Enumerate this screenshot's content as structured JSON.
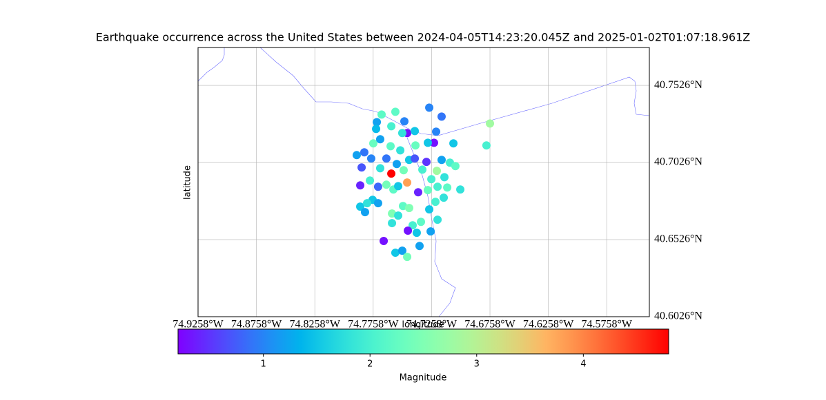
{
  "chart_data": {
    "type": "scatter",
    "title": "Earthquake occurrence across the United States between 2024-04-05T14:23:20.045Z and 2025-01-02T01:07:18.961Z",
    "xlabel": "longitude",
    "ylabel": "latitude",
    "colorbar_label": "Magnitude",
    "colormap": "rainbow",
    "grid": true,
    "xlim": [
      -74.9258,
      -74.5393
    ],
    "ylim": [
      40.6026,
      40.7772
    ],
    "xticks": [
      {
        "value": -74.9258,
        "label": "74.9258°W"
      },
      {
        "value": -74.8758,
        "label": "74.8758°W"
      },
      {
        "value": -74.8258,
        "label": "74.8258°W"
      },
      {
        "value": -74.7758,
        "label": "74.7758°W"
      },
      {
        "value": -74.7258,
        "label": "74.7258°W"
      },
      {
        "value": -74.6758,
        "label": "74.6758°W"
      },
      {
        "value": -74.6258,
        "label": "74.6258°W"
      },
      {
        "value": -74.5758,
        "label": "74.5758°W"
      }
    ],
    "yticks": [
      {
        "value": 40.6026,
        "label": "40.6026°N"
      },
      {
        "value": 40.6526,
        "label": "40.6526°N"
      },
      {
        "value": 40.7026,
        "label": "40.7026°N"
      },
      {
        "value": 40.7526,
        "label": "40.7526°N"
      }
    ],
    "clim": [
      0.2,
      4.8
    ],
    "cticks": [
      1,
      2,
      3,
      4
    ],
    "x": [
      -74.7278,
      -74.7172,
      -74.7686,
      -74.7568,
      -74.7727,
      -74.7491,
      -74.7467,
      -74.7219,
      -74.7402,
      -74.6758,
      -74.6788,
      -74.7071,
      -74.7237,
      -74.729,
      -74.7396,
      -74.7899,
      -74.7834,
      -74.7757,
      -74.7698,
      -74.7645,
      -74.7556,
      -74.7603,
      -74.7467,
      -74.7857,
      -74.7869,
      -74.7786,
      -74.7698,
      -74.7763,
      -74.7716,
      -74.7869,
      -74.781,
      -74.7828,
      -74.7373,
      -74.729,
      -74.7207,
      -74.7124,
      -74.7012,
      -74.7154,
      -74.7225,
      -74.7278,
      -74.7597,
      -74.7503,
      -74.745,
      -74.7544,
      -74.7597,
      -74.742,
      -74.7349,
      -74.7461,
      -74.7385,
      -74.7266,
      -74.7207,
      -74.7668,
      -74.7361,
      -74.7568,
      -74.7509,
      -74.7467,
      -74.7213,
      -74.7302,
      -74.7172,
      -74.7101,
      -74.7054,
      -74.7148,
      -74.726,
      -74.7337,
      -74.7497,
      -74.7645,
      -74.7585,
      -74.7716,
      -74.7775,
      -74.7526,
      -74.745,
      -74.7609,
      -74.7509,
      -74.7603,
      -74.7402,
      -74.7733,
      -74.7544
    ],
    "y": [
      40.7382,
      40.7324,
      40.7337,
      40.7355,
      40.7288,
      40.7293,
      40.7217,
      40.7226,
      40.723,
      40.7279,
      40.7137,
      40.715,
      40.7154,
      40.7154,
      40.7137,
      40.7074,
      40.7092,
      40.715,
      40.7177,
      40.7052,
      40.7016,
      40.6954,
      40.6896,
      40.6994,
      40.6878,
      40.6909,
      40.6989,
      40.6784,
      40.6762,
      40.674,
      40.6762,
      40.6704,
      40.6833,
      40.6847,
      40.6869,
      40.6864,
      40.6851,
      40.6798,
      40.6771,
      40.6722,
      40.6695,
      40.6744,
      40.6731,
      40.6682,
      40.6633,
      40.6619,
      40.6641,
      40.6584,
      40.657,
      40.6579,
      40.6655,
      40.6517,
      40.6485,
      40.6441,
      40.6454,
      40.6414,
      40.6972,
      40.703,
      40.7043,
      40.7025,
      40.7003,
      40.6931,
      40.6918,
      40.698,
      40.6976,
      40.6882,
      40.6851,
      40.6869,
      40.7052,
      40.7105,
      40.7043,
      40.7132,
      40.7217,
      40.7261,
      40.7052,
      40.7244,
      40.6873
    ],
    "magnitude": [
      1.0,
      0.9,
      2.2,
      2.2,
      1.2,
      1.0,
      0.3,
      1.0,
      1.5,
      2.8,
      2.0,
      1.5,
      0.3,
      1.5,
      2.3,
      1.2,
      0.9,
      2.3,
      1.2,
      0.9,
      1.2,
      4.8,
      3.8,
      0.7,
      0.4,
      2.0,
      1.8,
      1.5,
      1.2,
      1.5,
      1.8,
      1.2,
      0.4,
      2.3,
      2.0,
      2.2,
      1.8,
      1.8,
      2.0,
      1.5,
      2.5,
      2.2,
      2.5,
      1.8,
      1.8,
      2.0,
      2.2,
      0.3,
      1.5,
      1.2,
      1.8,
      0.3,
      1.2,
      1.5,
      1.2,
      2.4,
      2.8,
      0.5,
      1.2,
      2.0,
      2.2,
      1.8,
      2.0,
      2.0,
      2.4,
      2.4,
      2.2,
      0.8,
      1.0,
      1.8,
      1.5,
      2.2,
      1.8,
      2.0,
      0.7,
      1.4,
      1.5
    ]
  }
}
